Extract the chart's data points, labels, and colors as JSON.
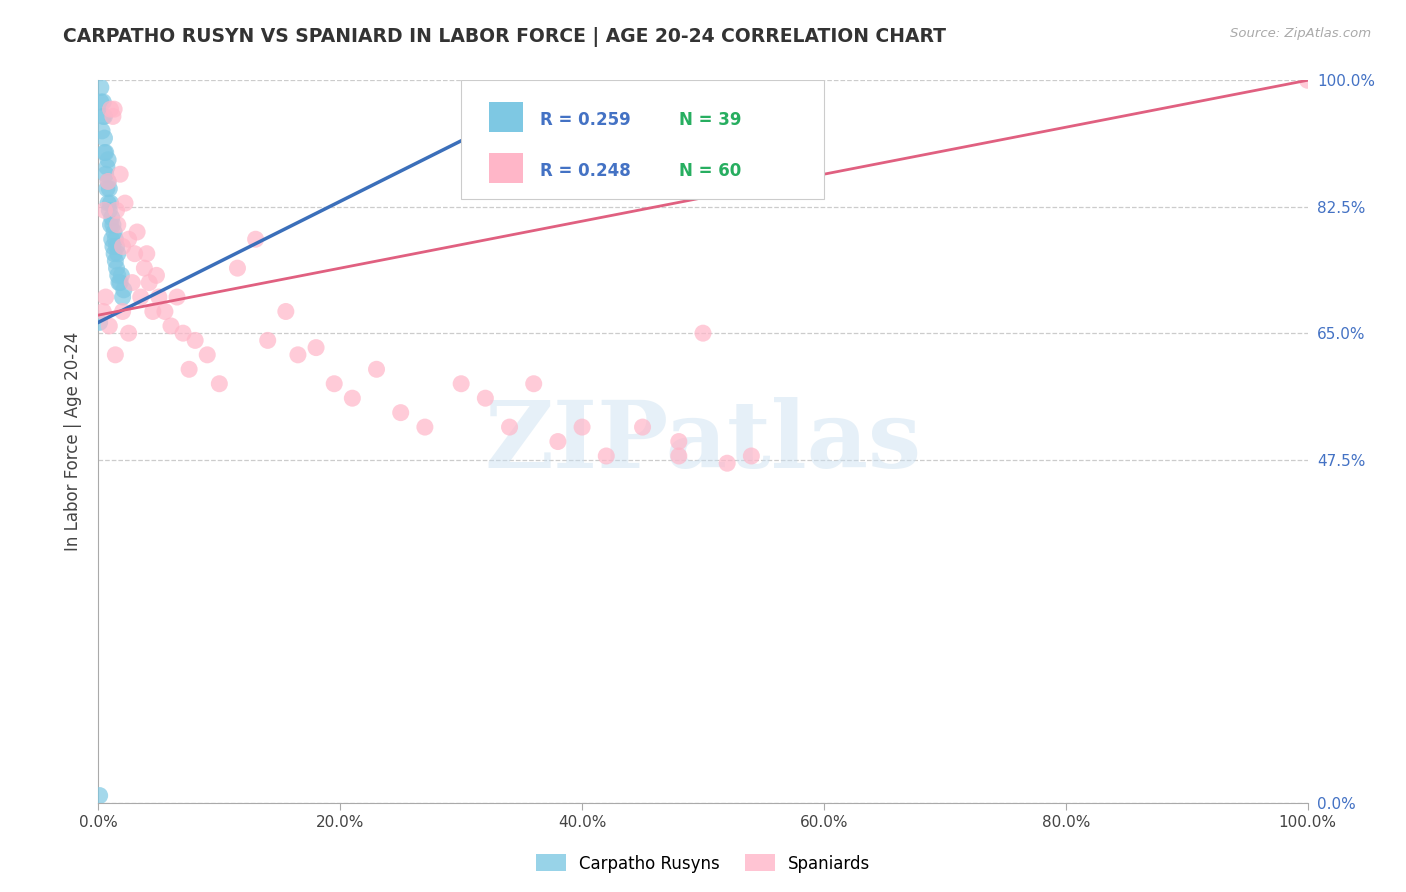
{
  "title": "CARPATHO RUSYN VS SPANIARD IN LABOR FORCE | AGE 20-24 CORRELATION CHART",
  "source": "Source: ZipAtlas.com",
  "ylabel": "In Labor Force | Age 20-24",
  "xlim": [
    0,
    1.0
  ],
  "ylim": [
    0,
    1.0
  ],
  "xtick_positions": [
    0.0,
    0.2,
    0.4,
    0.6,
    0.8,
    1.0
  ],
  "xticklabels": [
    "0.0%",
    "20.0%",
    "40.0%",
    "60.0%",
    "80.0%",
    "100.0%"
  ],
  "ytick_positions": [
    0.0,
    0.475,
    0.65,
    0.825,
    1.0
  ],
  "ytick_labels": [
    "0.0%",
    "47.5%",
    "65.0%",
    "82.5%",
    "100.0%"
  ],
  "legend_R_blue": "R = 0.259",
  "legend_N_blue": "N = 39",
  "legend_R_pink": "R = 0.248",
  "legend_N_pink": "N = 60",
  "blue_color": "#7ec8e3",
  "pink_color": "#ffb6c8",
  "blue_line_color": "#3b6fba",
  "pink_line_color": "#e06080",
  "blue_trendline_x": [
    0.0,
    0.4
  ],
  "blue_trendline_y": [
    0.665,
    1.0
  ],
  "pink_trendline_x": [
    0.0,
    1.0
  ],
  "pink_trendline_y": [
    0.675,
    1.0
  ],
  "blue_x": [
    0.002,
    0.002,
    0.003,
    0.004,
    0.004,
    0.005,
    0.005,
    0.005,
    0.006,
    0.006,
    0.007,
    0.007,
    0.008,
    0.008,
    0.008,
    0.009,
    0.009,
    0.01,
    0.01,
    0.011,
    0.011,
    0.012,
    0.012,
    0.013,
    0.013,
    0.014,
    0.014,
    0.015,
    0.015,
    0.016,
    0.016,
    0.017,
    0.018,
    0.019,
    0.02,
    0.021,
    0.001,
    0.4,
    0.001
  ],
  "blue_y": [
    0.97,
    0.99,
    0.93,
    0.95,
    0.97,
    0.9,
    0.92,
    0.95,
    0.87,
    0.9,
    0.85,
    0.88,
    0.83,
    0.86,
    0.89,
    0.82,
    0.85,
    0.8,
    0.83,
    0.78,
    0.81,
    0.77,
    0.8,
    0.76,
    0.79,
    0.75,
    0.78,
    0.74,
    0.77,
    0.73,
    0.76,
    0.72,
    0.72,
    0.73,
    0.7,
    0.71,
    0.665,
    1.0,
    0.01
  ],
  "pink_x": [
    0.005,
    0.008,
    0.01,
    0.012,
    0.013,
    0.015,
    0.016,
    0.018,
    0.02,
    0.022,
    0.025,
    0.028,
    0.03,
    0.032,
    0.035,
    0.038,
    0.04,
    0.042,
    0.045,
    0.048,
    0.05,
    0.055,
    0.06,
    0.065,
    0.07,
    0.075,
    0.08,
    0.09,
    0.1,
    0.115,
    0.13,
    0.14,
    0.155,
    0.165,
    0.18,
    0.195,
    0.21,
    0.23,
    0.25,
    0.27,
    0.3,
    0.32,
    0.34,
    0.36,
    0.38,
    0.4,
    0.42,
    0.45,
    0.48,
    0.48,
    0.5,
    0.52,
    0.54,
    0.004,
    0.006,
    0.009,
    0.014,
    0.02,
    0.025,
    1.0
  ],
  "pink_y": [
    0.82,
    0.86,
    0.96,
    0.95,
    0.96,
    0.82,
    0.8,
    0.87,
    0.77,
    0.83,
    0.78,
    0.72,
    0.76,
    0.79,
    0.7,
    0.74,
    0.76,
    0.72,
    0.68,
    0.73,
    0.7,
    0.68,
    0.66,
    0.7,
    0.65,
    0.6,
    0.64,
    0.62,
    0.58,
    0.74,
    0.78,
    0.64,
    0.68,
    0.62,
    0.63,
    0.58,
    0.56,
    0.6,
    0.54,
    0.52,
    0.58,
    0.56,
    0.52,
    0.58,
    0.5,
    0.52,
    0.48,
    0.52,
    0.5,
    0.48,
    0.65,
    0.47,
    0.48,
    0.68,
    0.7,
    0.66,
    0.62,
    0.68,
    0.65,
    1.0
  ],
  "watermark_text": "ZIPatlas",
  "background_color": "#ffffff",
  "grid_color": "#cccccc",
  "title_color": "#333333",
  "ytick_label_color": "#4472c4",
  "source_color": "#aaaaaa",
  "legend_color_blue": "#4472c4",
  "legend_color_green": "#27ae60"
}
